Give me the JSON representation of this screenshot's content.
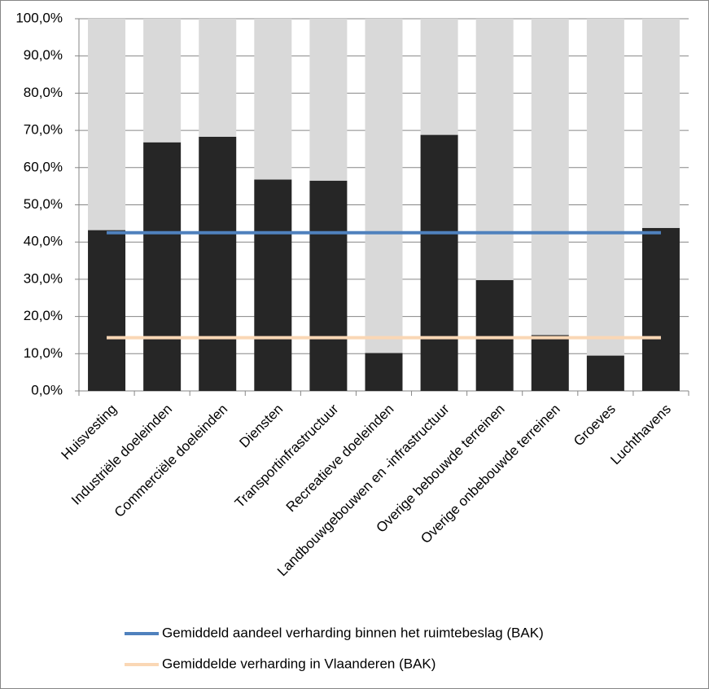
{
  "chart_data": {
    "type": "bar",
    "stacked": true,
    "categories": [
      "Huisvesting",
      "Industriële doeleinden",
      "Commerciële doeleinden",
      "Diensten",
      "Transportinfrastructuur",
      "Recreatieve doeleinden",
      "Landbouwgebouwen en -infrastructuur",
      "Overige bebouwde terreinen",
      "Overige onbebouwde terreinen",
      "Groeves",
      "Luchthavens"
    ],
    "series": [
      {
        "color": "#262626",
        "values": [
          43.2,
          66.8,
          68.3,
          56.8,
          56.5,
          10.2,
          68.8,
          29.8,
          15.0,
          9.5,
          43.8
        ]
      },
      {
        "color": "#d9d9d9",
        "values": [
          56.8,
          33.2,
          31.7,
          43.2,
          43.5,
          89.8,
          31.2,
          70.2,
          85.0,
          90.5,
          56.2
        ]
      },
      {
        "type": "line",
        "name": "Gemiddeld aandeel verharding binnen het ruimtebeslag (BAK)",
        "color": "#4f81bd",
        "values": [
          42.5,
          42.5,
          42.5,
          42.5,
          42.5,
          42.5,
          42.5,
          42.5,
          42.5,
          42.5,
          42.5
        ]
      },
      {
        "type": "line",
        "name": "Gemiddelde verharding in Vlaanderen (BAK)",
        "color": "#fad7b5",
        "values": [
          14.3,
          14.3,
          14.3,
          14.3,
          14.3,
          14.3,
          14.3,
          14.3,
          14.3,
          14.3,
          14.3
        ]
      }
    ],
    "ylim": [
      0,
      100
    ],
    "yticks": [
      {
        "value": 0,
        "label": "0,0%"
      },
      {
        "value": 10,
        "label": "10,0%"
      },
      {
        "value": 20,
        "label": "20,0%"
      },
      {
        "value": 30,
        "label": "30,0%"
      },
      {
        "value": 40,
        "label": "40,0%"
      },
      {
        "value": 50,
        "label": "50,0%"
      },
      {
        "value": 60,
        "label": "60,0%"
      },
      {
        "value": 70,
        "label": "70,0%"
      },
      {
        "value": 80,
        "label": "80,0%"
      },
      {
        "value": 90,
        "label": "90,0%"
      },
      {
        "value": 100,
        "label": "100,0%"
      }
    ],
    "grid": true,
    "legend": "bottom"
  }
}
